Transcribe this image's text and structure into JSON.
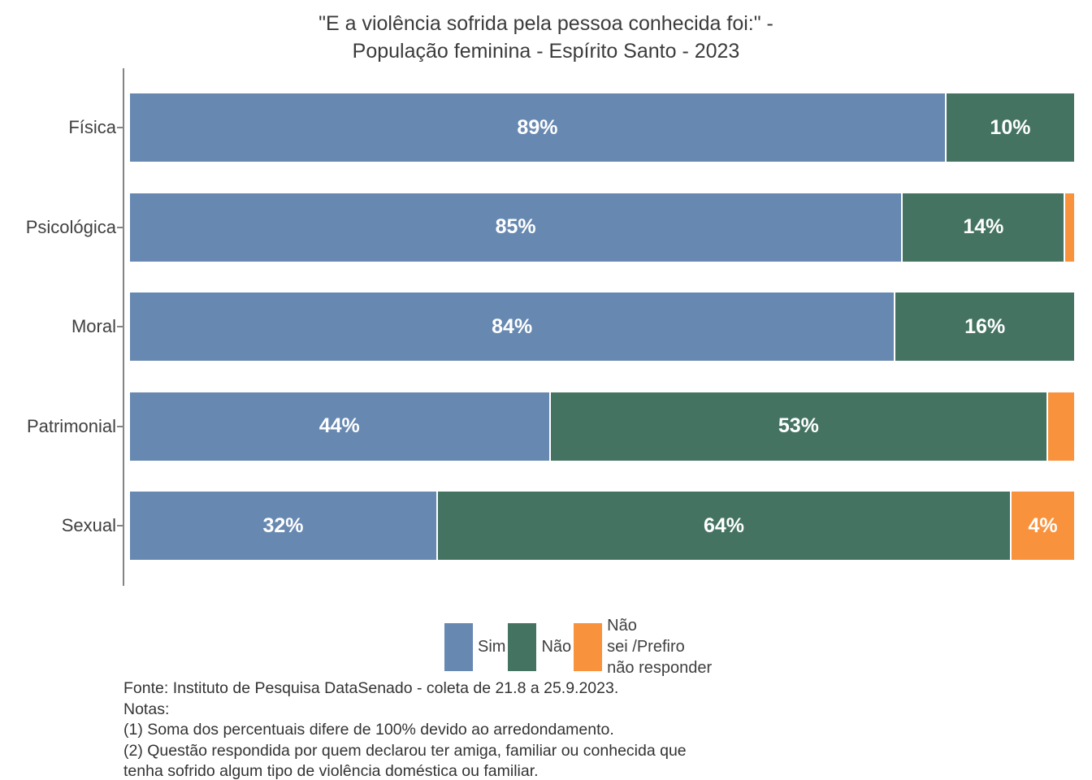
{
  "title": {
    "line1": "\"E a violência sofrida pela pessoa conhecida foi:\" -",
    "line2": "População feminina - Espírito Santo - 2023"
  },
  "colors": {
    "sim": "#6788b0",
    "nao": "#457362",
    "nao_sei": "#f8923d",
    "axis": "#848484",
    "title_text": "#3b3b3b",
    "category_text": "#404040",
    "bar_label_text": "#ffffff"
  },
  "chart_data": {
    "type": "bar",
    "orientation": "horizontal",
    "stacked": true,
    "units": "percent",
    "title": "\"E a violência sofrida pela pessoa conhecida foi:\" - População feminina - Espírito Santo - 2023",
    "categories": [
      "Física",
      "Psicológica",
      "Moral",
      "Patrimonial",
      "Sexual"
    ],
    "series": [
      {
        "name": "Sim",
        "color": "#6788b0",
        "values": [
          89,
          85,
          84,
          44,
          32
        ]
      },
      {
        "name": "Não",
        "color": "#457362",
        "values": [
          10,
          14,
          16,
          53,
          64
        ]
      },
      {
        "name": "Não sei /Prefiro não responder",
        "color": "#f8923d",
        "values": [
          0,
          1,
          0,
          3,
          4
        ]
      }
    ],
    "data_labels": [
      [
        "89%",
        "10%",
        ""
      ],
      [
        "85%",
        "14%",
        ""
      ],
      [
        "84%",
        "16%",
        ""
      ],
      [
        "44%",
        "53%",
        ""
      ],
      [
        "32%",
        "64%",
        "4%"
      ]
    ],
    "xlim": [
      0,
      100
    ],
    "grid": false,
    "legend_position": "bottom"
  },
  "legend": {
    "items": [
      {
        "lines": [
          "Sim"
        ],
        "color": "#6788b0"
      },
      {
        "lines": [
          "Não"
        ],
        "color": "#457362"
      },
      {
        "lines": [
          "Não",
          "sei /Prefiro",
          "não responder"
        ],
        "color": "#f8923d"
      }
    ]
  },
  "notes": {
    "lines": [
      "Fonte: Instituto de Pesquisa DataSenado - coleta de 21.8 a 25.9.2023.",
      "Notas:",
      "(1) Soma dos percentuais difere de 100% devido ao arredondamento.",
      "(2) Questão respondida por quem declarou ter amiga, familiar ou conhecida que",
      "tenha sofrido algum tipo de violência doméstica ou familiar."
    ]
  }
}
